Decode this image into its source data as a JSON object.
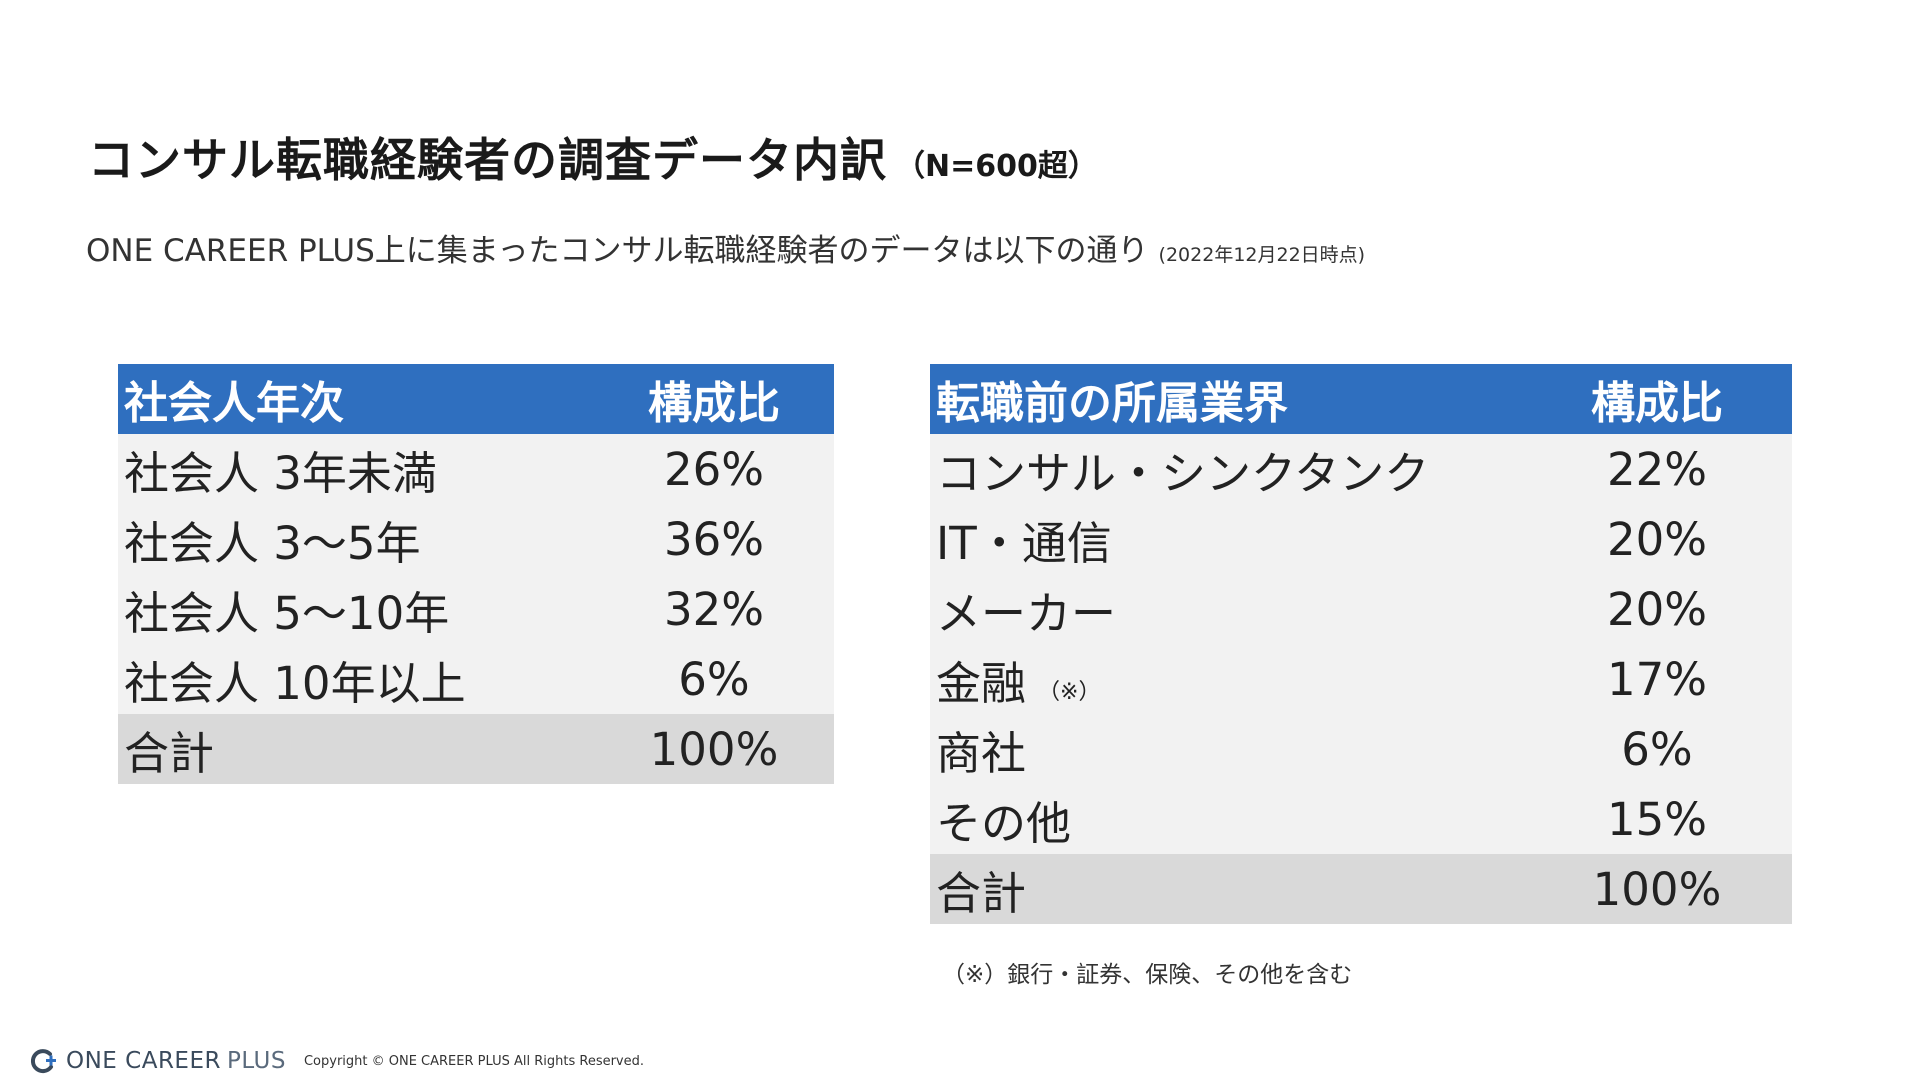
{
  "title": {
    "main": "コンサル転職経験者の調査データ内訳",
    "sample": "（N=600超）"
  },
  "subtitle": {
    "text": "ONE CAREER PLUS上に集まったコンサル転職経験者のデータは以下の通り",
    "as_of": "(2022年12月22日時点)"
  },
  "table_left": {
    "header": {
      "label": "社会人年次",
      "ratio": "構成比"
    },
    "rows": [
      {
        "label": "社会人 3年未満",
        "value": "26%"
      },
      {
        "label": "社会人 3〜5年",
        "value": "36%"
      },
      {
        "label": "社会人 5〜10年",
        "value": "32%"
      },
      {
        "label": "社会人 10年以上",
        "value": "6%"
      }
    ],
    "total": {
      "label": "合計",
      "value": "100%"
    }
  },
  "table_right": {
    "header": {
      "label": "転職前の所属業界",
      "ratio": "構成比"
    },
    "rows": [
      {
        "label": "コンサル・シンクタンク",
        "value": "22%",
        "note": ""
      },
      {
        "label": "IT・通信",
        "value": "20%",
        "note": ""
      },
      {
        "label": "メーカー",
        "value": "20%",
        "note": ""
      },
      {
        "label": "金融",
        "value": "17%",
        "note": "（※）"
      },
      {
        "label": "商社",
        "value": "6%",
        "note": ""
      },
      {
        "label": "その他",
        "value": "15%",
        "note": ""
      }
    ],
    "total": {
      "label": "合計",
      "value": "100%"
    }
  },
  "footnote": "（※）銀行・証券、保険、その他を含む",
  "footer": {
    "logo_main": "ONE CAREER",
    "logo_plus": "PLUS",
    "copyright": "Copyright © ONE CAREER PLUS All Rights Reserved."
  },
  "colors": {
    "header_bg": "#2f6fbf",
    "row_bg": "#f2f2f2",
    "total_bg": "#d9d9d9"
  },
  "icons": {
    "logo": "one-career-plus-logo-icon"
  }
}
